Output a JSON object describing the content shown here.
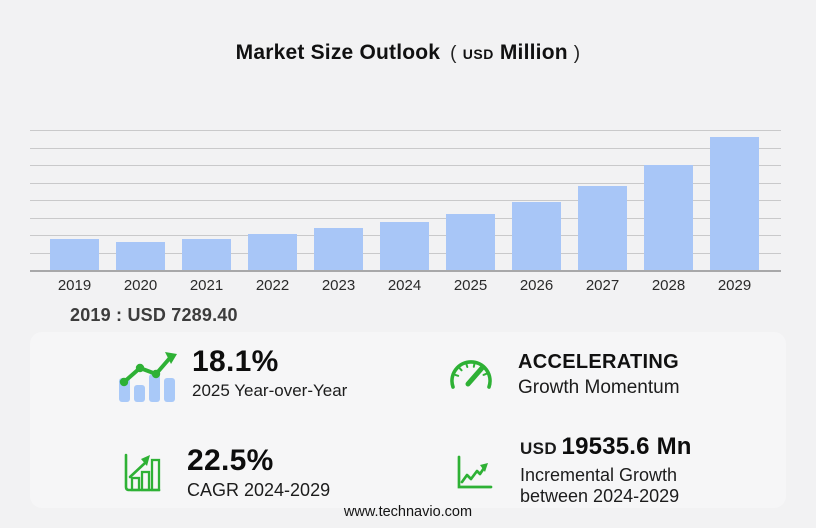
{
  "title": {
    "main": "Market Size Outlook",
    "open_paren": "(",
    "currency": "USD",
    "unit": "Million",
    "close_paren": ")"
  },
  "chart_data": {
    "type": "bar",
    "title": "Market Size Outlook (USD Million)",
    "categories": [
      "2019",
      "2020",
      "2021",
      "2022",
      "2023",
      "2024",
      "2025",
      "2026",
      "2027",
      "2028",
      "2029"
    ],
    "values": [
      7289.4,
      6680,
      7360,
      8540,
      9770,
      11109.2,
      13120,
      15815,
      19420,
      24300,
      30644.8
    ],
    "xlabel": "",
    "ylabel": "",
    "unit": "USD Million",
    "ylim": [
      0,
      32000
    ],
    "gridline_step": 4000,
    "grid": "horizontal",
    "legend_position": "none",
    "bar_color": "#a8c6f7",
    "axis_labels_visible": "x-only"
  },
  "year_note": "2019 : USD  7289.40",
  "stats": {
    "yoy": {
      "icon": "trend-bars-icon",
      "value": "18.1%",
      "label": "2025 Year-over-Year"
    },
    "momentum": {
      "icon": "gauge-icon",
      "value": "ACCELERATING",
      "label": "Growth Momentum"
    },
    "cagr": {
      "icon": "growth-bars-icon",
      "value": "22.5%",
      "label": "CAGR 2024-2029"
    },
    "incremental": {
      "icon": "line-chart-axis-icon",
      "currency": "USD",
      "value": "19535.6 Mn",
      "label_line1": "Incremental Growth",
      "label_line2": "between 2024-2029"
    }
  },
  "footer": {
    "website": "www.technavio.com"
  },
  "colors": {
    "background": "#f2f2f3",
    "bar_blue": "#a8c6f7",
    "icon_bar_blue": "#a9c9f8",
    "gridline": "#c9c9ca",
    "axis_line": "#a8a8a9",
    "accent_green": "#2eb135",
    "text_primary": "#111111",
    "text_note": "#3c3c3c"
  }
}
